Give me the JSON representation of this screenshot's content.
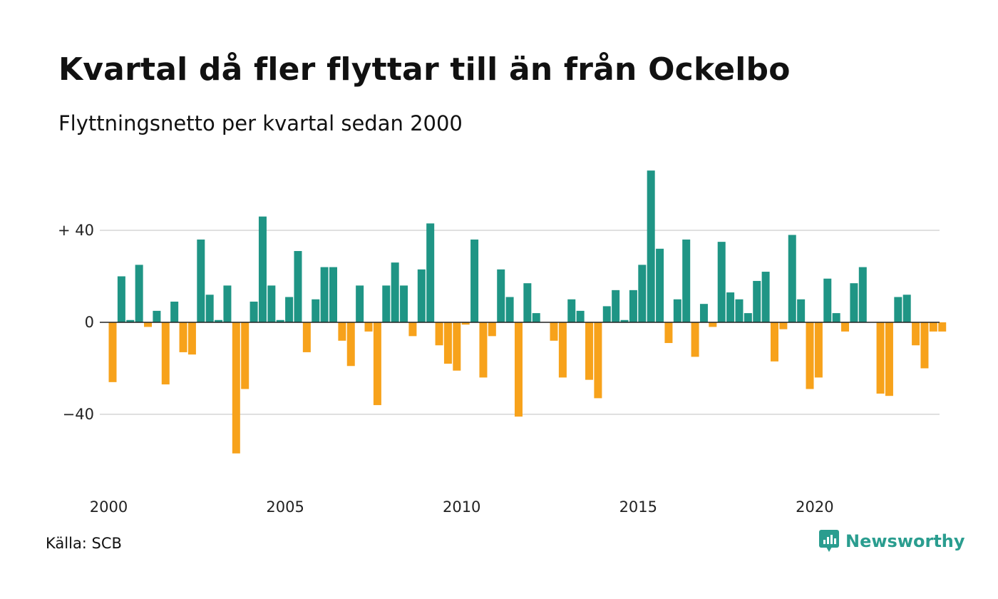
{
  "title": "Kvartal då fler flyttar till än från Ockelbo",
  "subtitle": "Flyttningsnetto per kvartal sedan 2000",
  "source": "Källa: SCB",
  "brand": "Newsworthy",
  "colors": {
    "positive": "#1f9585",
    "negative": "#f7a21b",
    "grid": "#e0e0e0",
    "zero": "#222222",
    "brand": "#2a9d8f"
  },
  "chart_data": {
    "type": "bar",
    "title": "Kvartal då fler flyttar till än från Ockelbo",
    "subtitle": "Flyttningsnetto per kvartal sedan 2000",
    "xlabel": "",
    "ylabel": "",
    "ylim": [
      -60,
      70
    ],
    "yticks": [
      {
        "value": 40,
        "label": "+ 40"
      },
      {
        "value": 0,
        "label": "0"
      },
      {
        "value": -40,
        "label": "−40"
      }
    ],
    "xticks": [
      "2000",
      "2005",
      "2010",
      "2015",
      "2020"
    ],
    "grid": true,
    "legend": "none",
    "categories": [
      "2000 K1",
      "2000 K2",
      "2000 K3",
      "2000 K4",
      "2001 K1",
      "2001 K2",
      "2001 K3",
      "2001 K4",
      "2002 K1",
      "2002 K2",
      "2002 K3",
      "2002 K4",
      "2003 K1",
      "2003 K2",
      "2003 K3",
      "2003 K4",
      "2004 K1",
      "2004 K2",
      "2004 K3",
      "2004 K4",
      "2005 K1",
      "2005 K2",
      "2005 K3",
      "2005 K4",
      "2006 K1",
      "2006 K2",
      "2006 K3",
      "2006 K4",
      "2007 K1",
      "2007 K2",
      "2007 K3",
      "2007 K4",
      "2008 K1",
      "2008 K2",
      "2008 K3",
      "2008 K4",
      "2009 K1",
      "2009 K2",
      "2009 K3",
      "2009 K4",
      "2010 K1",
      "2010 K2",
      "2010 K3",
      "2010 K4",
      "2011 K1",
      "2011 K2",
      "2011 K3",
      "2011 K4",
      "2012 K1",
      "2012 K2",
      "2012 K3",
      "2012 K4",
      "2013 K1",
      "2013 K2",
      "2013 K3",
      "2013 K4",
      "2014 K1",
      "2014 K2",
      "2014 K3",
      "2014 K4",
      "2015 K1",
      "2015 K2",
      "2015 K3",
      "2015 K4",
      "2016 K1",
      "2016 K2",
      "2016 K3",
      "2016 K4",
      "2017 K1",
      "2017 K2",
      "2017 K3",
      "2017 K4",
      "2018 K1",
      "2018 K2",
      "2018 K3",
      "2018 K4",
      "2019 K1",
      "2019 K2",
      "2019 K3",
      "2019 K4",
      "2020 K1",
      "2020 K2",
      "2020 K3",
      "2020 K4",
      "2021 K1",
      "2021 K2",
      "2021 K3",
      "2021 K4",
      "2022 K1",
      "2022 K2",
      "2022 K3",
      "2022 K4",
      "2023 K1",
      "2023 K2",
      "2023 K3",
      "2023 K4"
    ],
    "values": [
      -26,
      20,
      1,
      25,
      -2,
      5,
      -27,
      9,
      -13,
      -14,
      36,
      12,
      1,
      16,
      -57,
      -29,
      9,
      46,
      16,
      1,
      11,
      31,
      -13,
      10,
      24,
      24,
      -8,
      -19,
      16,
      -4,
      -36,
      16,
      26,
      16,
      -6,
      23,
      43,
      -10,
      -18,
      -21,
      -1,
      36,
      -24,
      -6,
      23,
      11,
      -41,
      17,
      4,
      0,
      -8,
      -24,
      10,
      5,
      -25,
      -33,
      7,
      14,
      1,
      14,
      25,
      66,
      32,
      -9,
      10,
      36,
      -15,
      8,
      -2,
      35,
      13,
      10,
      4,
      18,
      22,
      -17,
      -3,
      38,
      10,
      -29,
      -24,
      19,
      4,
      -4,
      17,
      24,
      0,
      -31,
      -32,
      11,
      12,
      -10,
      -20,
      -4,
      -4,
      0
    ]
  }
}
